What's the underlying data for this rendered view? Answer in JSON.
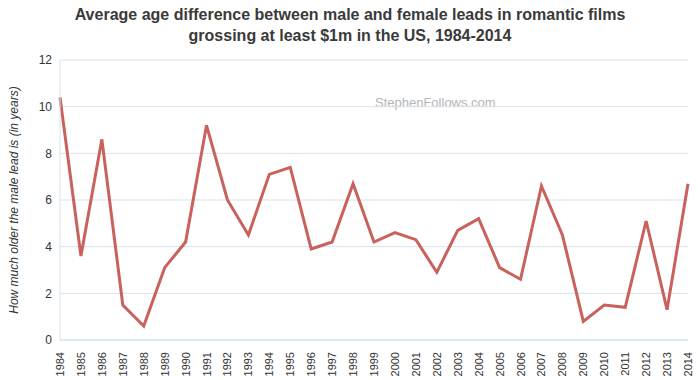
{
  "chart_data": {
    "type": "line",
    "title": "Average age difference between male and female leads in romantic films grossing at least $1m in the US, 1984-2014",
    "ylabel": "How much older the male lead is (in years)",
    "annotation": "StephenFollows.com",
    "categories": [
      "1984",
      "1985",
      "1986",
      "1987",
      "1988",
      "1989",
      "1990",
      "1991",
      "1992",
      "1993",
      "1994",
      "1995",
      "1996",
      "1997",
      "1998",
      "1999",
      "2000",
      "2001",
      "2002",
      "2003",
      "2004",
      "2005",
      "2006",
      "2007",
      "2008",
      "2009",
      "2010",
      "2011",
      "2012",
      "2013",
      "2014"
    ],
    "values": [
      10.4,
      3.6,
      8.6,
      1.5,
      0.6,
      3.1,
      4.2,
      9.2,
      6.0,
      4.5,
      7.1,
      7.4,
      3.9,
      4.2,
      6.7,
      4.2,
      4.6,
      4.3,
      2.9,
      4.7,
      5.2,
      3.1,
      2.6,
      6.6,
      4.5,
      0.8,
      1.5,
      1.4,
      5.1,
      1.3,
      6.7
    ],
    "color": "#c9615d",
    "ylim": [
      0,
      12
    ],
    "yticks": [
      0,
      2,
      4,
      6,
      8,
      10,
      12
    ],
    "grid": true
  }
}
